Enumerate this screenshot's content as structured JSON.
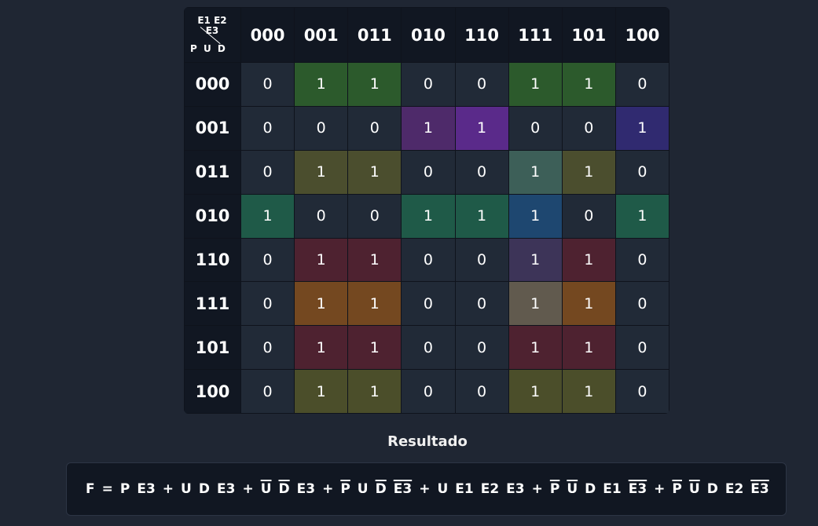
{
  "kmap": {
    "corner_top": "E1 E2 E3",
    "corner_bottom": "P U D",
    "columns": [
      "000",
      "001",
      "011",
      "010",
      "110",
      "111",
      "101",
      "100"
    ],
    "rows": [
      {
        "label": "000",
        "cells": [
          {
            "v": "0",
            "c": ""
          },
          {
            "v": "1",
            "c": "#2c5a2c"
          },
          {
            "v": "1",
            "c": "#2c5a2c"
          },
          {
            "v": "0",
            "c": ""
          },
          {
            "v": "0",
            "c": ""
          },
          {
            "v": "1",
            "c": "#2c5a2c"
          },
          {
            "v": "1",
            "c": "#2c5a2c"
          },
          {
            "v": "0",
            "c": ""
          }
        ]
      },
      {
        "label": "001",
        "cells": [
          {
            "v": "0",
            "c": ""
          },
          {
            "v": "0",
            "c": ""
          },
          {
            "v": "0",
            "c": ""
          },
          {
            "v": "1",
            "c": "#4e2a6a"
          },
          {
            "v": "1",
            "c": "#5a2a8a"
          },
          {
            "v": "0",
            "c": ""
          },
          {
            "v": "0",
            "c": ""
          },
          {
            "v": "1",
            "c": "#302a70"
          }
        ]
      },
      {
        "label": "011",
        "cells": [
          {
            "v": "0",
            "c": ""
          },
          {
            "v": "1",
            "c": "#4b4e2e"
          },
          {
            "v": "1",
            "c": "#4b4e2e"
          },
          {
            "v": "0",
            "c": ""
          },
          {
            "v": "0",
            "c": ""
          },
          {
            "v": "1",
            "c": "#3d5f58"
          },
          {
            "v": "1",
            "c": "#4b4e2e"
          },
          {
            "v": "0",
            "c": ""
          }
        ]
      },
      {
        "label": "010",
        "cells": [
          {
            "v": "1",
            "c": "#1f5a48"
          },
          {
            "v": "0",
            "c": ""
          },
          {
            "v": "0",
            "c": ""
          },
          {
            "v": "1",
            "c": "#1f5a48"
          },
          {
            "v": "1",
            "c": "#1f5a48"
          },
          {
            "v": "1",
            "c": "#1e4770"
          },
          {
            "v": "0",
            "c": ""
          },
          {
            "v": "1",
            "c": "#1f5a48"
          }
        ]
      },
      {
        "label": "110",
        "cells": [
          {
            "v": "0",
            "c": ""
          },
          {
            "v": "1",
            "c": "#4e2230"
          },
          {
            "v": "1",
            "c": "#4e2230"
          },
          {
            "v": "0",
            "c": ""
          },
          {
            "v": "0",
            "c": ""
          },
          {
            "v": "1",
            "c": "#3d3458"
          },
          {
            "v": "1",
            "c": "#4e2230"
          },
          {
            "v": "0",
            "c": ""
          }
        ]
      },
      {
        "label": "111",
        "cells": [
          {
            "v": "0",
            "c": ""
          },
          {
            "v": "1",
            "c": "#744820"
          },
          {
            "v": "1",
            "c": "#744820"
          },
          {
            "v": "0",
            "c": ""
          },
          {
            "v": "0",
            "c": ""
          },
          {
            "v": "1",
            "c": "#615a4e"
          },
          {
            "v": "1",
            "c": "#744820"
          },
          {
            "v": "0",
            "c": ""
          }
        ]
      },
      {
        "label": "101",
        "cells": [
          {
            "v": "0",
            "c": ""
          },
          {
            "v": "1",
            "c": "#4e2230"
          },
          {
            "v": "1",
            "c": "#4e2230"
          },
          {
            "v": "0",
            "c": ""
          },
          {
            "v": "0",
            "c": ""
          },
          {
            "v": "1",
            "c": "#4e2230"
          },
          {
            "v": "1",
            "c": "#4e2230"
          },
          {
            "v": "0",
            "c": ""
          }
        ]
      },
      {
        "label": "100",
        "cells": [
          {
            "v": "0",
            "c": ""
          },
          {
            "v": "1",
            "c": "#4b4e2a"
          },
          {
            "v": "1",
            "c": "#4b4e2a"
          },
          {
            "v": "0",
            "c": ""
          },
          {
            "v": "0",
            "c": ""
          },
          {
            "v": "1",
            "c": "#4b4e2a"
          },
          {
            "v": "1",
            "c": "#4b4e2a"
          },
          {
            "v": "0",
            "c": ""
          }
        ]
      }
    ]
  },
  "result": {
    "title": "Resultado",
    "tokens": [
      {
        "t": "F",
        "ov": false
      },
      {
        "t": "=",
        "ov": false
      },
      {
        "t": "P",
        "ov": false
      },
      {
        "t": "E3",
        "ov": false
      },
      {
        "t": "+",
        "ov": false
      },
      {
        "t": "U",
        "ov": false
      },
      {
        "t": "D",
        "ov": false
      },
      {
        "t": "E3",
        "ov": false
      },
      {
        "t": "+",
        "ov": false
      },
      {
        "t": "U",
        "ov": true
      },
      {
        "t": "D",
        "ov": true
      },
      {
        "t": "E3",
        "ov": false
      },
      {
        "t": "+",
        "ov": false
      },
      {
        "t": "P",
        "ov": true
      },
      {
        "t": "U",
        "ov": false
      },
      {
        "t": "D",
        "ov": true
      },
      {
        "t": "E3",
        "ov": true
      },
      {
        "t": "+",
        "ov": false
      },
      {
        "t": "U",
        "ov": false
      },
      {
        "t": "E1",
        "ov": false
      },
      {
        "t": "E2",
        "ov": false
      },
      {
        "t": "E3",
        "ov": false
      },
      {
        "t": "+",
        "ov": false
      },
      {
        "t": "P",
        "ov": true
      },
      {
        "t": "U",
        "ov": true
      },
      {
        "t": "D",
        "ov": false
      },
      {
        "t": "E1",
        "ov": false
      },
      {
        "t": "E3",
        "ov": true
      },
      {
        "t": "+",
        "ov": false
      },
      {
        "t": "P",
        "ov": true
      },
      {
        "t": "U",
        "ov": true
      },
      {
        "t": "D",
        "ov": false
      },
      {
        "t": "E2",
        "ov": false
      },
      {
        "t": "E3",
        "ov": true
      }
    ]
  }
}
